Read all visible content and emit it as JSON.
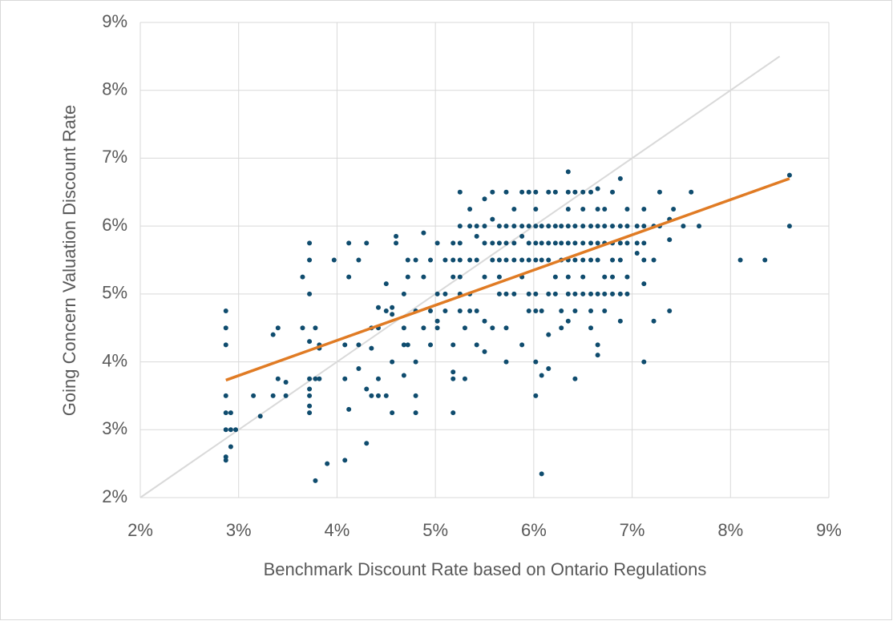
{
  "chart_data": {
    "type": "scatter",
    "x_label": "Benchmark Discount Rate based on Ontario Regulations",
    "y_label": "Going Concern Valuation Discount Rate",
    "xlim": [
      2,
      9
    ],
    "ylim": [
      2,
      9
    ],
    "xticks": [
      {
        "value": 2,
        "label": "2%"
      },
      {
        "value": 3,
        "label": "3%"
      },
      {
        "value": 4,
        "label": "4%"
      },
      {
        "value": 5,
        "label": "5%"
      },
      {
        "value": 6,
        "label": "6%"
      },
      {
        "value": 7,
        "label": "7%"
      },
      {
        "value": 8,
        "label": "8%"
      },
      {
        "value": 9,
        "label": "9%"
      }
    ],
    "yticks": [
      {
        "value": 2,
        "label": "2%"
      },
      {
        "value": 3,
        "label": "3%"
      },
      {
        "value": 4,
        "label": "4%"
      },
      {
        "value": 5,
        "label": "5%"
      },
      {
        "value": 6,
        "label": "6%"
      },
      {
        "value": 7,
        "label": "7%"
      },
      {
        "value": 8,
        "label": "8%"
      },
      {
        "value": 9,
        "label": "9%"
      }
    ],
    "grid": true,
    "color": "#0f4c6e",
    "x": [
      2.87,
      2.87,
      2.87,
      2.87,
      2.87,
      2.87,
      2.87,
      2.87,
      2.92,
      2.92,
      2.92,
      2.97,
      3.15,
      3.22,
      3.35,
      3.35,
      3.4,
      3.4,
      3.48,
      3.48,
      3.65,
      3.65,
      3.72,
      3.72,
      3.72,
      3.72,
      3.72,
      3.72,
      3.72,
      3.72,
      3.72,
      3.78,
      3.78,
      3.78,
      3.82,
      3.82,
      3.82,
      3.9,
      3.97,
      4.08,
      4.08,
      4.08,
      4.12,
      4.12,
      4.12,
      4.22,
      4.22,
      4.22,
      4.3,
      4.3,
      4.3,
      4.35,
      4.35,
      4.35,
      4.42,
      4.42,
      4.42,
      4.42,
      4.5,
      4.5,
      4.5,
      4.56,
      4.56,
      4.56,
      4.56,
      4.6,
      4.6,
      4.68,
      4.68,
      4.68,
      4.68,
      4.72,
      4.72,
      4.72,
      4.8,
      4.8,
      4.8,
      4.8,
      4.8,
      4.88,
      4.88,
      4.88,
      4.95,
      4.95,
      4.95,
      5.02,
      5.02,
      5.02,
      5.02,
      5.1,
      5.1,
      5.1,
      5.18,
      5.18,
      5.18,
      5.18,
      5.18,
      5.18,
      5.18,
      5.25,
      5.25,
      5.25,
      5.25,
      5.25,
      5.25,
      5.25,
      5.3,
      5.3,
      5.35,
      5.35,
      5.35,
      5.35,
      5.35,
      5.42,
      5.42,
      5.42,
      5.42,
      5.42,
      5.5,
      5.5,
      5.5,
      5.5,
      5.5,
      5.5,
      5.58,
      5.58,
      5.58,
      5.58,
      5.58,
      5.65,
      5.65,
      5.65,
      5.65,
      5.65,
      5.72,
      5.72,
      5.72,
      5.72,
      5.72,
      5.72,
      5.72,
      5.8,
      5.8,
      5.8,
      5.8,
      5.8,
      5.88,
      5.88,
      5.88,
      5.88,
      5.88,
      5.88,
      5.95,
      5.95,
      5.95,
      5.95,
      5.95,
      5.95,
      6.02,
      6.02,
      6.02,
      6.02,
      6.02,
      6.02,
      6.02,
      6.02,
      6.02,
      6.08,
      6.08,
      6.08,
      6.08,
      6.08,
      6.08,
      6.15,
      6.15,
      6.15,
      6.15,
      6.15,
      6.15,
      6.15,
      6.22,
      6.22,
      6.22,
      6.22,
      6.22,
      6.28,
      6.28,
      6.28,
      6.28,
      6.28,
      6.35,
      6.35,
      6.35,
      6.35,
      6.35,
      6.35,
      6.35,
      6.35,
      6.35,
      6.42,
      6.42,
      6.42,
      6.42,
      6.42,
      6.42,
      6.42,
      6.5,
      6.5,
      6.5,
      6.5,
      6.5,
      6.5,
      6.5,
      6.58,
      6.58,
      6.58,
      6.58,
      6.58,
      6.58,
      6.58,
      6.65,
      6.65,
      6.65,
      6.65,
      6.65,
      6.65,
      6.65,
      6.65,
      6.72,
      6.72,
      6.72,
      6.72,
      6.72,
      6.72,
      6.8,
      6.8,
      6.8,
      6.8,
      6.8,
      6.8,
      6.88,
      6.88,
      6.88,
      6.88,
      6.88,
      6.88,
      6.95,
      6.95,
      6.95,
      6.95,
      6.95,
      7.05,
      7.05,
      7.05,
      7.12,
      7.12,
      7.12,
      7.12,
      7.12,
      7.12,
      7.22,
      7.22,
      7.22,
      7.28,
      7.28,
      7.38,
      7.38,
      7.38,
      7.42,
      7.52,
      7.6,
      7.68,
      8.1,
      8.35,
      8.6,
      8.6
    ],
    "values": [
      4.75,
      4.5,
      4.25,
      3.5,
      3.25,
      3,
      2.6,
      2.55,
      3.25,
      3,
      2.75,
      3,
      3.5,
      3.2,
      3.5,
      4.4,
      4.5,
      3.75,
      3.5,
      3.7,
      5.25,
      4.5,
      5.75,
      5.5,
      5,
      4.3,
      3.75,
      3.6,
      3.5,
      3.35,
      3.25,
      4.5,
      3.75,
      2.25,
      4.25,
      4.2,
      3.75,
      2.5,
      5.5,
      3.75,
      4.25,
      2.55,
      5.75,
      5.25,
      3.3,
      3.9,
      4.25,
      5.5,
      5.75,
      3.6,
      2.8,
      4.5,
      4.2,
      3.5,
      4.5,
      3.75,
      3.5,
      4.8,
      5.15,
      4.75,
      3.5,
      4.8,
      4.7,
      4,
      3.25,
      5.75,
      5.85,
      4.25,
      3.8,
      5,
      4.5,
      5.5,
      5.25,
      4.25,
      5.5,
      4.75,
      3.5,
      3.25,
      4,
      5.9,
      4.5,
      5.25,
      4.25,
      4.75,
      5.5,
      5.75,
      5,
      4.6,
      4.5,
      4.75,
      5,
      5.5,
      5.75,
      5.5,
      5.25,
      4.25,
      3.85,
      3.75,
      3.25,
      6.5,
      6,
      5.75,
      5.5,
      5.25,
      5,
      4.75,
      3.75,
      4.5,
      6.25,
      6,
      5.5,
      5,
      4.75,
      6,
      5.85,
      5.5,
      4.75,
      4.25,
      6.4,
      6,
      5.75,
      5.25,
      4.6,
      4.15,
      6.5,
      6.1,
      5.75,
      5.5,
      4.5,
      6,
      5.75,
      5.5,
      5.25,
      5,
      6.5,
      6,
      5.75,
      5.5,
      5,
      4.5,
      4,
      6.25,
      6,
      5.75,
      5.5,
      5,
      6.5,
      6,
      5.85,
      5.5,
      5.25,
      4.25,
      6.5,
      6,
      5.75,
      5.5,
      5,
      4.75,
      6.5,
      6.25,
      6,
      5.75,
      5.5,
      5,
      4.75,
      4,
      3.5,
      6,
      5.75,
      5.5,
      4.75,
      3.8,
      2.35,
      6.5,
      6,
      5.75,
      5.5,
      5,
      4.4,
      3.9,
      6.5,
      6,
      5.75,
      5.25,
      5,
      6,
      5.75,
      5.5,
      4.75,
      4.5,
      6.8,
      6.5,
      6.25,
      6,
      5.75,
      5.5,
      5.25,
      5,
      4.6,
      6.5,
      6,
      5.75,
      5.5,
      5,
      4.75,
      3.75,
      6.5,
      6.25,
      6,
      5.75,
      5.5,
      5.25,
      5,
      6.5,
      6,
      5.75,
      5.5,
      5,
      4.75,
      4.5,
      6.55,
      6.25,
      6,
      5.75,
      5.5,
      5,
      4.25,
      4.1,
      6.25,
      6,
      5.75,
      5.25,
      5,
      4.75,
      6.5,
      6,
      5.75,
      5.5,
      5.25,
      5,
      6.7,
      6,
      5.75,
      5.5,
      5,
      4.6,
      6.25,
      6,
      5.75,
      5.25,
      5,
      6,
      5.75,
      5.6,
      6.25,
      6,
      5.75,
      5.5,
      5.15,
      4,
      6,
      5.5,
      4.6,
      6.5,
      6,
      6.1,
      5.8,
      4.75,
      6.25,
      6,
      6.5,
      6,
      5.5,
      5.5,
      6.75,
      6
    ],
    "trendline": {
      "x": [
        2.87,
        8.6
      ],
      "values": [
        3.73,
        6.7
      ],
      "color": "#e07b24"
    },
    "reference_line": {
      "x": [
        2,
        8.5
      ],
      "values": [
        2,
        8.5
      ],
      "color": "#d9d9d9"
    }
  }
}
